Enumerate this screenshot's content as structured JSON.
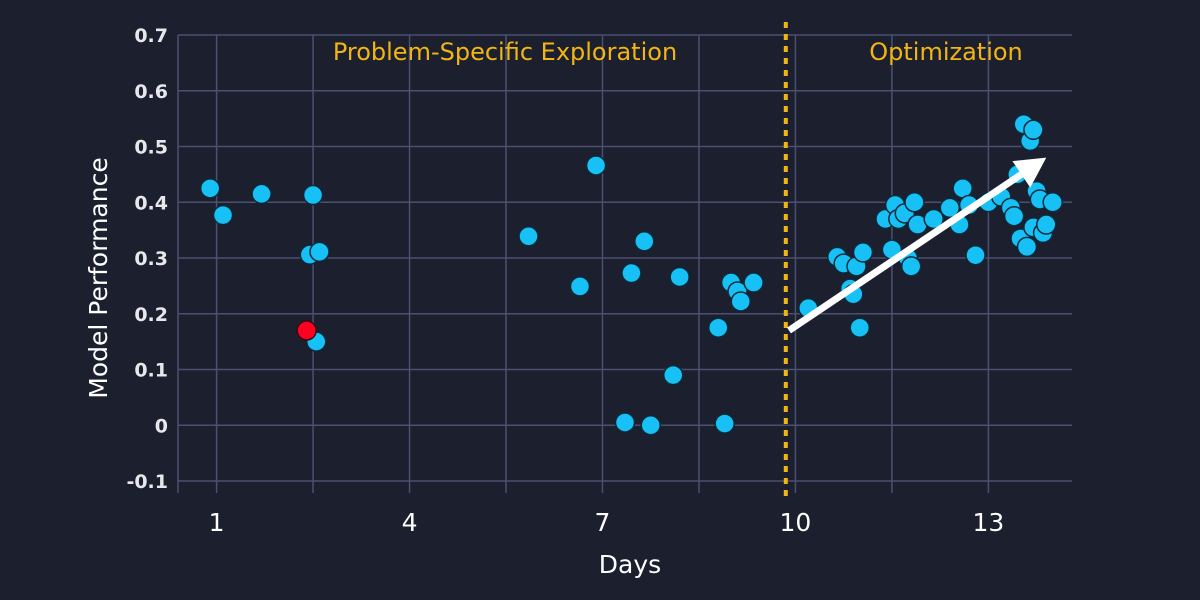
{
  "chart_data": {
    "type": "scatter",
    "xlabel": "Days",
    "ylabel": "Model Performance",
    "x_ticks": [
      "1",
      "4",
      "7",
      "10",
      "13"
    ],
    "y_ticks": [
      "0.7",
      "0.6",
      "0.5",
      "0.4",
      "0.3",
      "0.2",
      "0.1",
      "0",
      "-0.1"
    ],
    "xlim": [
      0.4,
      14.3
    ],
    "ylim": [
      -0.1,
      0.7
    ],
    "grid": true,
    "phase_divider_x": 9.85,
    "annotations": [
      "Problem-Specific Exploration",
      "Optimization"
    ],
    "trend_arrow": {
      "from": [
        9.9,
        0.17
      ],
      "to": [
        13.9,
        0.48
      ]
    },
    "colors": {
      "point": "#18c1f5",
      "highlight": "#ff0022",
      "divider": "#f2b512",
      "arrow": "#ffffff",
      "grid": "#4a5070"
    },
    "points": [
      {
        "x": 0.9,
        "y": 0.425
      },
      {
        "x": 1.1,
        "y": 0.377
      },
      {
        "x": 1.7,
        "y": 0.415
      },
      {
        "x": 2.5,
        "y": 0.413
      },
      {
        "x": 2.45,
        "y": 0.306
      },
      {
        "x": 2.6,
        "y": 0.311
      },
      {
        "x": 2.55,
        "y": 0.15
      },
      {
        "x": 5.85,
        "y": 0.339
      },
      {
        "x": 6.65,
        "y": 0.249
      },
      {
        "x": 6.9,
        "y": 0.466
      },
      {
        "x": 7.35,
        "y": 0.005
      },
      {
        "x": 7.45,
        "y": 0.273
      },
      {
        "x": 7.65,
        "y": 0.33
      },
      {
        "x": 7.75,
        "y": 0.0
      },
      {
        "x": 8.1,
        "y": 0.09
      },
      {
        "x": 8.2,
        "y": 0.266
      },
      {
        "x": 8.8,
        "y": 0.175
      },
      {
        "x": 8.9,
        "y": 0.003
      },
      {
        "x": 9.0,
        "y": 0.256
      },
      {
        "x": 9.1,
        "y": 0.24
      },
      {
        "x": 9.15,
        "y": 0.222
      },
      {
        "x": 9.35,
        "y": 0.256
      },
      {
        "x": 10.2,
        "y": 0.21
      },
      {
        "x": 10.65,
        "y": 0.302
      },
      {
        "x": 10.75,
        "y": 0.29
      },
      {
        "x": 10.85,
        "y": 0.245
      },
      {
        "x": 10.9,
        "y": 0.235
      },
      {
        "x": 10.95,
        "y": 0.285
      },
      {
        "x": 11.0,
        "y": 0.175
      },
      {
        "x": 11.05,
        "y": 0.31
      },
      {
        "x": 11.4,
        "y": 0.37
      },
      {
        "x": 11.5,
        "y": 0.315
      },
      {
        "x": 11.55,
        "y": 0.395
      },
      {
        "x": 11.6,
        "y": 0.37
      },
      {
        "x": 11.7,
        "y": 0.38
      },
      {
        "x": 11.75,
        "y": 0.3
      },
      {
        "x": 11.8,
        "y": 0.285
      },
      {
        "x": 11.85,
        "y": 0.4
      },
      {
        "x": 11.9,
        "y": 0.36
      },
      {
        "x": 12.15,
        "y": 0.37
      },
      {
        "x": 12.4,
        "y": 0.39
      },
      {
        "x": 12.55,
        "y": 0.36
      },
      {
        "x": 12.6,
        "y": 0.425
      },
      {
        "x": 12.7,
        "y": 0.395
      },
      {
        "x": 12.8,
        "y": 0.305
      },
      {
        "x": 13.0,
        "y": 0.4
      },
      {
        "x": 13.2,
        "y": 0.41
      },
      {
        "x": 13.35,
        "y": 0.39
      },
      {
        "x": 13.4,
        "y": 0.375
      },
      {
        "x": 13.45,
        "y": 0.45
      },
      {
        "x": 13.5,
        "y": 0.335
      },
      {
        "x": 13.55,
        "y": 0.54
      },
      {
        "x": 13.6,
        "y": 0.32
      },
      {
        "x": 13.65,
        "y": 0.51
      },
      {
        "x": 13.7,
        "y": 0.53
      },
      {
        "x": 13.7,
        "y": 0.355
      },
      {
        "x": 13.75,
        "y": 0.42
      },
      {
        "x": 13.8,
        "y": 0.405
      },
      {
        "x": 13.85,
        "y": 0.345
      },
      {
        "x": 13.9,
        "y": 0.36
      },
      {
        "x": 14.0,
        "y": 0.4
      }
    ],
    "highlight_points": [
      {
        "x": 2.4,
        "y": 0.17
      }
    ]
  }
}
